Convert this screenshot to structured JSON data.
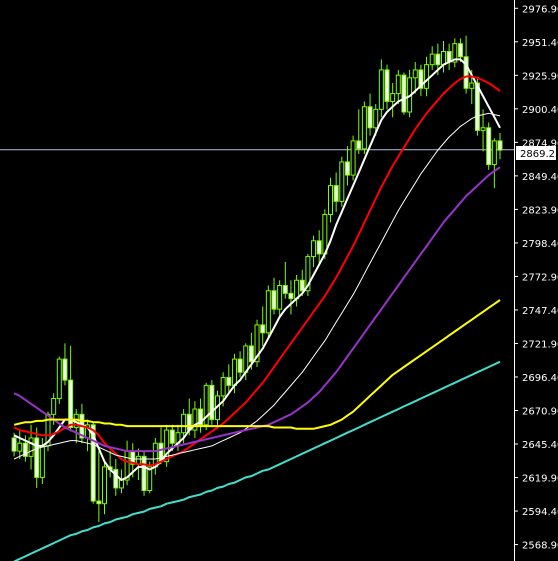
{
  "chart_data": {
    "type": "candlestick",
    "colors": {
      "background": "#000000",
      "axis": "#ffffff",
      "candle_up_fill": "#000000",
      "candle_up_border": "#7cfc00",
      "candle_down_fill": "#f0fff0",
      "candle_down_border": "#7cfc00",
      "wick": "#7cfc00",
      "price_line": "#b0c4de"
    },
    "y_axis": {
      "ylim": [
        2556.4,
        2983.2
      ],
      "ticks": [
        "2976.90",
        "2951.40",
        "2925.90",
        "2900.40",
        "2874.90",
        "2849.40",
        "2823.90",
        "2798.40",
        "2772.90",
        "2747.40",
        "2721.90",
        "2696.40",
        "2670.90",
        "2645.40",
        "2619.90",
        "2594.40",
        "2568.90"
      ]
    },
    "current_price": {
      "value": 2869.23,
      "label": "2869.23"
    },
    "n_bars": 87,
    "bar_spacing": 5.65,
    "candles": [
      [
        2650.0,
        2654.0,
        2636.0,
        2640.0
      ],
      [
        2640.0,
        2656.0,
        2634.0,
        2646.0
      ],
      [
        2646.0,
        2652.0,
        2632.0,
        2636.0
      ],
      [
        2636.0,
        2660.0,
        2626.0,
        2650.0
      ],
      [
        2650.0,
        2658.0,
        2612.0,
        2620.0
      ],
      [
        2620.0,
        2650.0,
        2615.0,
        2644.0
      ],
      [
        2644.0,
        2670.0,
        2640.0,
        2668.0
      ],
      [
        2668.0,
        2684.0,
        2660.0,
        2680.0
      ],
      [
        2680.0,
        2712.0,
        2676.0,
        2710.0
      ],
      [
        2710.0,
        2722.0,
        2690.0,
        2694.0
      ],
      [
        2694.0,
        2720.0,
        2655.0,
        2658.0
      ],
      [
        2658.0,
        2672.0,
        2646.0,
        2668.0
      ],
      [
        2668.0,
        2676.0,
        2646.0,
        2650.0
      ],
      [
        2650.0,
        2664.0,
        2640.0,
        2660.0
      ],
      [
        2660.0,
        2662.0,
        2600.0,
        2602.0
      ],
      [
        2602.0,
        2640.0,
        2586.0,
        2600.0
      ],
      [
        2600.0,
        2632.0,
        2592.0,
        2628.0
      ],
      [
        2628.0,
        2640.0,
        2620.0,
        2626.0
      ],
      [
        2626.0,
        2634.0,
        2606.0,
        2612.0
      ],
      [
        2612.0,
        2626.0,
        2608.0,
        2618.0
      ],
      [
        2618.0,
        2648.0,
        2614.0,
        2640.0
      ],
      [
        2640.0,
        2646.0,
        2620.0,
        2630.0
      ],
      [
        2630.0,
        2642.0,
        2618.0,
        2636.0
      ],
      [
        2636.0,
        2640.0,
        2606.0,
        2610.0
      ],
      [
        2610.0,
        2632.0,
        2608.0,
        2628.0
      ],
      [
        2628.0,
        2650.0,
        2622.0,
        2646.0
      ],
      [
        2646.0,
        2658.0,
        2630.0,
        2632.0
      ],
      [
        2632.0,
        2660.0,
        2628.0,
        2656.0
      ],
      [
        2656.0,
        2660.0,
        2640.0,
        2646.0
      ],
      [
        2646.0,
        2660.0,
        2640.0,
        2654.0
      ],
      [
        2654.0,
        2672.0,
        2646.0,
        2668.0
      ],
      [
        2668.0,
        2680.0,
        2652.0,
        2656.0
      ],
      [
        2656.0,
        2678.0,
        2650.0,
        2672.0
      ],
      [
        2672.0,
        2680.0,
        2654.0,
        2660.0
      ],
      [
        2660.0,
        2692.0,
        2656.0,
        2690.0
      ],
      [
        2690.0,
        2694.0,
        2660.0,
        2664.0
      ],
      [
        2664.0,
        2686.0,
        2660.0,
        2682.0
      ],
      [
        2682.0,
        2700.0,
        2674.0,
        2696.0
      ],
      [
        2696.0,
        2706.0,
        2684.0,
        2690.0
      ],
      [
        2690.0,
        2714.0,
        2684.0,
        2710.0
      ],
      [
        2710.0,
        2716.0,
        2696.0,
        2700.0
      ],
      [
        2700.0,
        2722.0,
        2694.0,
        2720.0
      ],
      [
        2720.0,
        2730.0,
        2702.0,
        2708.0
      ],
      [
        2708.0,
        2740.0,
        2704.0,
        2736.0
      ],
      [
        2736.0,
        2750.0,
        2720.0,
        2730.0
      ],
      [
        2730.0,
        2766.0,
        2726.0,
        2762.0
      ],
      [
        2762.0,
        2772.0,
        2744.0,
        2748.0
      ],
      [
        2748.0,
        2770.0,
        2742.0,
        2766.0
      ],
      [
        2766.0,
        2784.0,
        2756.0,
        2760.0
      ],
      [
        2760.0,
        2770.0,
        2744.0,
        2756.0
      ],
      [
        2756.0,
        2774.0,
        2750.0,
        2770.0
      ],
      [
        2770.0,
        2778.0,
        2758.0,
        2762.0
      ],
      [
        2762.0,
        2790.0,
        2758.0,
        2788.0
      ],
      [
        2788.0,
        2804.0,
        2780.0,
        2800.0
      ],
      [
        2800.0,
        2808.0,
        2782.0,
        2790.0
      ],
      [
        2790.0,
        2824.0,
        2786.0,
        2820.0
      ],
      [
        2820.0,
        2848.0,
        2814.0,
        2842.0
      ],
      [
        2842.0,
        2852.0,
        2822.0,
        2830.0
      ],
      [
        2830.0,
        2864.0,
        2826.0,
        2860.0
      ],
      [
        2860.0,
        2872.0,
        2842.0,
        2850.0
      ],
      [
        2850.0,
        2880.0,
        2846.0,
        2876.0
      ],
      [
        2876.0,
        2900.0,
        2866.0,
        2870.0
      ],
      [
        2870.0,
        2906.0,
        2866.0,
        2902.0
      ],
      [
        2902.0,
        2912.0,
        2880.0,
        2886.0
      ],
      [
        2886.0,
        2904.0,
        2880.0,
        2900.0
      ],
      [
        2900.0,
        2938.0,
        2894.0,
        2930.0
      ],
      [
        2930.0,
        2934.0,
        2900.0,
        2906.0
      ],
      [
        2906.0,
        2920.0,
        2894.0,
        2912.0
      ],
      [
        2912.0,
        2930.0,
        2904.0,
        2926.0
      ],
      [
        2926.0,
        2928.0,
        2896.0,
        2898.0
      ],
      [
        2898.0,
        2930.0,
        2894.0,
        2924.0
      ],
      [
        2924.0,
        2936.0,
        2912.0,
        2930.0
      ],
      [
        2930.0,
        2934.0,
        2910.0,
        2916.0
      ],
      [
        2916.0,
        2940.0,
        2910.0,
        2934.0
      ],
      [
        2934.0,
        2948.0,
        2930.0,
        2942.0
      ],
      [
        2942.0,
        2950.0,
        2926.0,
        2934.0
      ],
      [
        2934.0,
        2952.0,
        2928.0,
        2944.0
      ],
      [
        2944.0,
        2950.0,
        2930.0,
        2936.0
      ],
      [
        2936.0,
        2954.0,
        2932.0,
        2950.0
      ],
      [
        2950.0,
        2954.0,
        2936.0,
        2940.0
      ],
      [
        2940.0,
        2956.0,
        2912.0,
        2916.0
      ],
      [
        2916.0,
        2930.0,
        2904.0,
        2920.0
      ],
      [
        2920.0,
        2924.0,
        2880.0,
        2884.0
      ],
      [
        2884.0,
        2900.0,
        2868.0,
        2886.0
      ],
      [
        2886.0,
        2890.0,
        2854.0,
        2858.0
      ],
      [
        2858.0,
        2878.0,
        2840.0,
        2876.0
      ],
      [
        2876.0,
        2882.0,
        2862.0,
        2869.0
      ]
    ],
    "series": [
      {
        "type": "line",
        "color": "#ffffff",
        "values": [
          2652.0,
          2650.0,
          2648.0,
          2646.0,
          2644.0,
          2644.0,
          2647.0,
          2652.0,
          2658.0,
          2664.0,
          2664.0,
          2662.0,
          2660.0,
          2658.0,
          2652.0,
          2642.0,
          2632.0,
          2626.0,
          2622.0,
          2618.0,
          2620.0,
          2624.0,
          2628.0,
          2628.0,
          2626.0,
          2628.0,
          2632.0,
          2638.0,
          2642.0,
          2646.0,
          2650.0,
          2656.0,
          2660.0,
          2662.0,
          2666.0,
          2670.0,
          2674.0,
          2678.0,
          2684.0,
          2690.0,
          2694.0,
          2700.0,
          2706.0,
          2712.0,
          2718.0,
          2726.0,
          2734.0,
          2742.0,
          2748.0,
          2752.0,
          2756.0,
          2760.0,
          2766.0,
          2774.0,
          2782.0,
          2790.0,
          2800.0,
          2812.0,
          2822.0,
          2832.0,
          2842.0,
          2852.0,
          2862.0,
          2872.0,
          2882.0,
          2892.0,
          2898.0,
          2902.0,
          2906.0,
          2908.0,
          2910.0,
          2914.0,
          2918.0,
          2922.0,
          2926.0,
          2930.0,
          2934.0,
          2936.0,
          2938.0,
          2938.0,
          2934.0,
          2926.0,
          2918.0,
          2910.0,
          2902.0,
          2894.0,
          2886.0
        ]
      },
      {
        "type": "line",
        "color": "#ff0000",
        "values": [
          2658.0,
          2656.0,
          2655.0,
          2654.0,
          2653.0,
          2652.0,
          2652.0,
          2653.0,
          2655.0,
          2658.0,
          2660.0,
          2660.0,
          2659.0,
          2658.0,
          2656.0,
          2652.0,
          2646.0,
          2642.0,
          2638.0,
          2634.0,
          2632.0,
          2631.0,
          2630.0,
          2630.0,
          2629.0,
          2630.0,
          2632.0,
          2634.0,
          2636.0,
          2638.0,
          2640.0,
          2643.0,
          2646.0,
          2649.0,
          2652.0,
          2655.0,
          2658.0,
          2661.0,
          2665.0,
          2669.0,
          2673.0,
          2677.0,
          2682.0,
          2687.0,
          2692.0,
          2698.0,
          2704.0,
          2710.0,
          2716.0,
          2722.0,
          2728.0,
          2734.0,
          2740.0,
          2746.0,
          2752.0,
          2758.0,
          2765.0,
          2772.0,
          2780.0,
          2788.0,
          2796.0,
          2805.0,
          2814.0,
          2823.0,
          2832.0,
          2841.0,
          2849.0,
          2857.0,
          2864.0,
          2871.0,
          2878.0,
          2885.0,
          2891.0,
          2897.0,
          2902.0,
          2907.0,
          2912.0,
          2916.0,
          2920.0,
          2923.0,
          2925.0,
          2925.0,
          2924.0,
          2922.0,
          2920.0,
          2917.0,
          2914.0
        ]
      },
      {
        "type": "line",
        "color": "#ffffff",
        "values": [
          2634.0,
          2636.0,
          2638.0,
          2640.0,
          2642.0,
          2643.0,
          2644.0,
          2645.0,
          2646.0,
          2647.0,
          2648.0,
          2648.0,
          2647.0,
          2646.0,
          2645.0,
          2643.0,
          2641.0,
          2639.0,
          2637.0,
          2636.0,
          2635.0,
          2634.0,
          2634.0,
          2634.0,
          2634.0,
          2634.0,
          2635.0,
          2636.0,
          2637.0,
          2638.0,
          2639.0,
          2640.0,
          2641.0,
          2642.0,
          2643.0,
          2644.0,
          2646.0,
          2648.0,
          2650.0,
          2652.0,
          2654.0,
          2657.0,
          2660.0,
          2663.0,
          2667.0,
          2671.0,
          2675.0,
          2680.0,
          2685.0,
          2690.0,
          2695.0,
          2700.0,
          2706.0,
          2712.0,
          2718.0,
          2724.0,
          2731.0,
          2738.0,
          2745.0,
          2752.0,
          2759.0,
          2767.0,
          2775.0,
          2783.0,
          2791.0,
          2799.0,
          2807.0,
          2815.0,
          2823.0,
          2830.0,
          2837.0,
          2844.0,
          2851.0,
          2857.0,
          2863.0,
          2869.0,
          2874.0,
          2879.0,
          2883.0,
          2887.0,
          2890.0,
          2893.0,
          2895.0,
          2896.0,
          2897.0,
          2896.0,
          2895.0
        ]
      },
      {
        "type": "line",
        "color": "#9932cc",
        "values": [
          2684.0,
          2682.0,
          2679.0,
          2676.0,
          2673.0,
          2670.0,
          2667.0,
          2664.0,
          2661.0,
          2658.0,
          2656.0,
          2654.0,
          2652.0,
          2650.0,
          2648.0,
          2646.0,
          2644.0,
          2643.0,
          2642.0,
          2641.0,
          2640.0,
          2640.0,
          2640.0,
          2640.0,
          2640.0,
          2640.0,
          2641.0,
          2642.0,
          2643.0,
          2644.0,
          2645.0,
          2646.0,
          2647.0,
          2648.0,
          2649.0,
          2650.0,
          2651.0,
          2652.0,
          2653.0,
          2654.0,
          2655.0,
          2656.0,
          2657.0,
          2658.0,
          2659.0,
          2660.0,
          2662.0,
          2664.0,
          2666.0,
          2668.0,
          2671.0,
          2674.0,
          2677.0,
          2681.0,
          2685.0,
          2690.0,
          2695.0,
          2700.0,
          2706.0,
          2712.0,
          2718.0,
          2724.0,
          2730.0,
          2736.0,
          2742.0,
          2748.0,
          2754.0,
          2760.0,
          2766.0,
          2772.0,
          2778.0,
          2784.0,
          2790.0,
          2796.0,
          2802.0,
          2808.0,
          2814.0,
          2819.0,
          2824.0,
          2829.0,
          2834.0,
          2838.0,
          2842.0,
          2846.0,
          2850.0,
          2853.0,
          2856.0
        ]
      },
      {
        "type": "line",
        "color": "#ffff00",
        "values": [
          2660.0,
          2661.0,
          2662.0,
          2662.0,
          2663.0,
          2663.0,
          2664.0,
          2664.0,
          2664.0,
          2664.0,
          2664.0,
          2664.0,
          2663.0,
          2663.0,
          2662.0,
          2662.0,
          2661.0,
          2661.0,
          2660.0,
          2660.0,
          2659.0,
          2659.0,
          2659.0,
          2659.0,
          2659.0,
          2659.0,
          2659.0,
          2659.0,
          2659.0,
          2659.0,
          2659.0,
          2659.0,
          2659.0,
          2659.0,
          2659.0,
          2659.0,
          2659.0,
          2659.0,
          2659.0,
          2659.0,
          2659.0,
          2659.0,
          2659.0,
          2659.0,
          2659.0,
          2659.0,
          2658.0,
          2658.0,
          2658.0,
          2658.0,
          2657.0,
          2657.0,
          2657.0,
          2657.0,
          2658.0,
          2659.0,
          2660.0,
          2662.0,
          2664.0,
          2667.0,
          2670.0,
          2674.0,
          2678.0,
          2682.0,
          2686.0,
          2690.0,
          2694.0,
          2698.0,
          2701.0,
          2704.0,
          2707.0,
          2710.0,
          2713.0,
          2716.0,
          2719.0,
          2722.0,
          2725.0,
          2728.0,
          2731.0,
          2734.0,
          2737.0,
          2740.0,
          2743.0,
          2746.0,
          2749.0,
          2752.0,
          2755.0
        ]
      },
      {
        "type": "line",
        "color": "#40e0d0",
        "values": [
          2556.0,
          2558.0,
          2560.0,
          2562.0,
          2564.0,
          2566.0,
          2568.0,
          2570.0,
          2572.0,
          2574.0,
          2576.0,
          2577.0,
          2579.0,
          2580.0,
          2582.0,
          2583.0,
          2585.0,
          2586.0,
          2588.0,
          2589.0,
          2590.0,
          2592.0,
          2593.0,
          2594.0,
          2596.0,
          2597.0,
          2598.0,
          2600.0,
          2601.0,
          2602.0,
          2603.0,
          2605.0,
          2606.0,
          2607.0,
          2609.0,
          2610.0,
          2612.0,
          2613.0,
          2615.0,
          2616.0,
          2618.0,
          2620.0,
          2621.0,
          2623.0,
          2625.0,
          2626.0,
          2628.0,
          2630.0,
          2632.0,
          2634.0,
          2636.0,
          2638.0,
          2640.0,
          2642.0,
          2644.0,
          2646.0,
          2648.0,
          2650.0,
          2652.0,
          2654.0,
          2656.0,
          2658.0,
          2660.0,
          2662.0,
          2664.0,
          2666.0,
          2668.0,
          2670.0,
          2672.0,
          2674.0,
          2676.0,
          2678.0,
          2680.0,
          2682.0,
          2684.0,
          2686.0,
          2688.0,
          2690.0,
          2692.0,
          2694.0,
          2696.0,
          2698.0,
          2700.0,
          2702.0,
          2704.0,
          2706.0,
          2708.0
        ]
      }
    ]
  }
}
